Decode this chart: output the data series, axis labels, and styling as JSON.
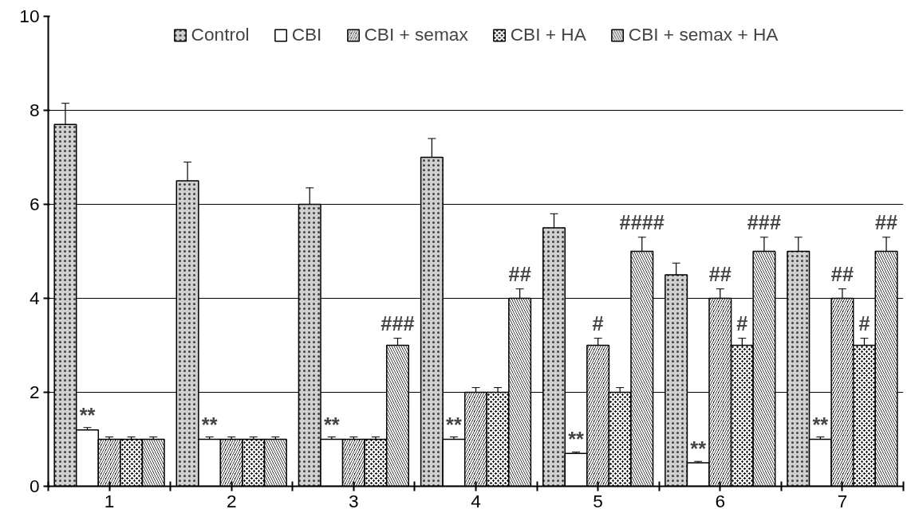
{
  "chart_data": {
    "type": "bar",
    "x": [
      1,
      2,
      3,
      4,
      5,
      6,
      7
    ],
    "xlim": [
      0.5,
      7.5
    ],
    "xticks": [
      {
        "value": 0.5,
        "label": null
      },
      {
        "value": 1,
        "label": "1"
      },
      {
        "value": 1.5,
        "label": null
      },
      {
        "value": 2,
        "label": "2"
      },
      {
        "value": 2.5,
        "label": null
      },
      {
        "value": 3,
        "label": "3"
      },
      {
        "value": 3.5,
        "label": null
      },
      {
        "value": 4,
        "label": "4"
      },
      {
        "value": 4.5,
        "label": null
      },
      {
        "value": 5,
        "label": "5"
      },
      {
        "value": 5.5,
        "label": null
      },
      {
        "value": 6,
        "label": "6"
      },
      {
        "value": 6.5,
        "label": null
      },
      {
        "value": 7,
        "label": "7"
      },
      {
        "value": 7.5,
        "label": null
      }
    ],
    "ylim": [
      0,
      10
    ],
    "yticks": [
      0,
      2,
      4,
      6,
      8,
      10
    ],
    "grid": "y",
    "legend": "top",
    "series": [
      {
        "name": "Control",
        "color": "#d0d0d0",
        "values": [
          7.7,
          6.5,
          6.0,
          7.0,
          5.5,
          4.5,
          5.0
        ],
        "errors": [
          0.45,
          0.4,
          0.35,
          0.4,
          0.3,
          0.25,
          0.3
        ]
      },
      {
        "name": "CBI",
        "color": "#ffffff",
        "values": [
          1.2,
          1.0,
          1.0,
          1.0,
          0.7,
          0.5,
          1.0
        ],
        "errors": [
          0.05,
          0.05,
          0.05,
          0.05,
          0.03,
          0.03,
          0.05
        ]
      },
      {
        "name": "CBI + semax",
        "color": "#000000",
        "values": [
          1.0,
          1.0,
          1.0,
          2.0,
          3.0,
          4.0,
          4.0
        ],
        "errors": [
          0.05,
          0.05,
          0.05,
          0.1,
          0.15,
          0.2,
          0.2
        ]
      },
      {
        "name": "CBI + HA",
        "color": "#000000",
        "values": [
          1.0,
          1.0,
          1.0,
          2.0,
          2.0,
          3.0,
          3.0
        ],
        "errors": [
          0.05,
          0.05,
          0.05,
          0.1,
          0.1,
          0.15,
          0.15
        ]
      },
      {
        "name": "CBI + semax + HA",
        "color": "#000000",
        "values": [
          1.0,
          1.0,
          3.0,
          4.0,
          5.0,
          5.0,
          5.0
        ],
        "errors": [
          0.05,
          0.05,
          0.15,
          0.2,
          0.3,
          0.3,
          0.3
        ]
      }
    ],
    "annotations": [
      {
        "text": "**",
        "x": 0.82,
        "y": 1.25
      },
      {
        "text": "**",
        "x": 1.82,
        "y": 1.05
      },
      {
        "text": "**",
        "x": 2.82,
        "y": 1.05
      },
      {
        "text": "**",
        "x": 3.82,
        "y": 1.05
      },
      {
        "text": "**",
        "x": 4.82,
        "y": 0.73
      },
      {
        "text": "**",
        "x": 5.82,
        "y": 0.53
      },
      {
        "text": "**",
        "x": 6.82,
        "y": 1.05
      },
      {
        "text": "###",
        "x": 3.36,
        "y": 3.2
      },
      {
        "text": "##",
        "x": 4.36,
        "y": 4.25
      },
      {
        "text": "#",
        "x": 5.0,
        "y": 3.2
      },
      {
        "text": "####",
        "x": 5.36,
        "y": 5.35
      },
      {
        "text": "##",
        "x": 6.0,
        "y": 4.25
      },
      {
        "text": "#",
        "x": 6.18,
        "y": 3.2
      },
      {
        "text": "###",
        "x": 6.36,
        "y": 5.35
      },
      {
        "text": "##",
        "x": 7.0,
        "y": 4.25
      },
      {
        "text": "#",
        "x": 7.18,
        "y": 3.2
      },
      {
        "text": "##",
        "x": 7.36,
        "y": 5.35
      }
    ]
  }
}
